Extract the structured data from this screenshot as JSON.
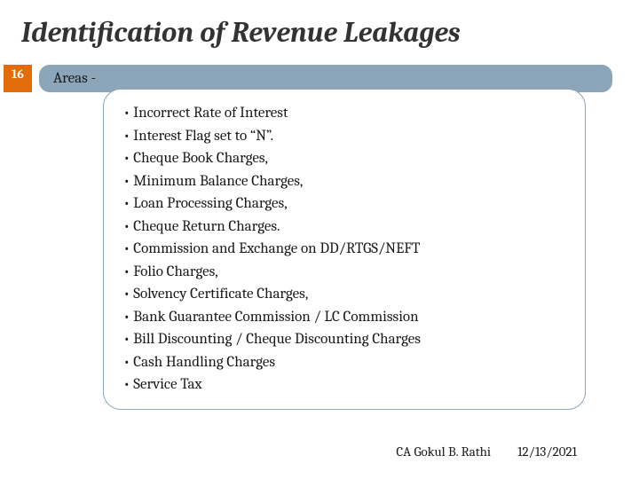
{
  "title": {
    "text": "Identification of Revenue Leakages",
    "fontsize": 32,
    "color": "#333333"
  },
  "page_badge": {
    "number": "16",
    "bg_color": "#e36c0a",
    "text_color": "#ffffff",
    "fontsize": 14
  },
  "areas_bar": {
    "label": "Areas -",
    "bg_color": "#8ca5b8",
    "text_color": "#1a1a1a",
    "fontsize": 17
  },
  "content": {
    "border_color": "#8ca5b8",
    "fontsize": 17,
    "items": [
      "Incorrect Rate of Interest",
      "Interest Flag set to “N”.",
      "Cheque Book Charges,",
      "Minimum Balance Charges,",
      "Loan Processing Charges,",
      "Cheque Return Charges.",
      "Commission and Exchange on DD/RTGS/NEFT",
      "Folio Charges,",
      "Solvency Certificate Charges,",
      "Bank Guarantee Commission / LC Commission",
      "Bill Discounting / Cheque Discounting Charges",
      "Cash Handling Charges",
      "Service Tax"
    ]
  },
  "footer": {
    "author": "CA Gokul B. Rathi",
    "date": "12/13/2021",
    "fontsize": 15,
    "color": "#1a1a1a"
  }
}
